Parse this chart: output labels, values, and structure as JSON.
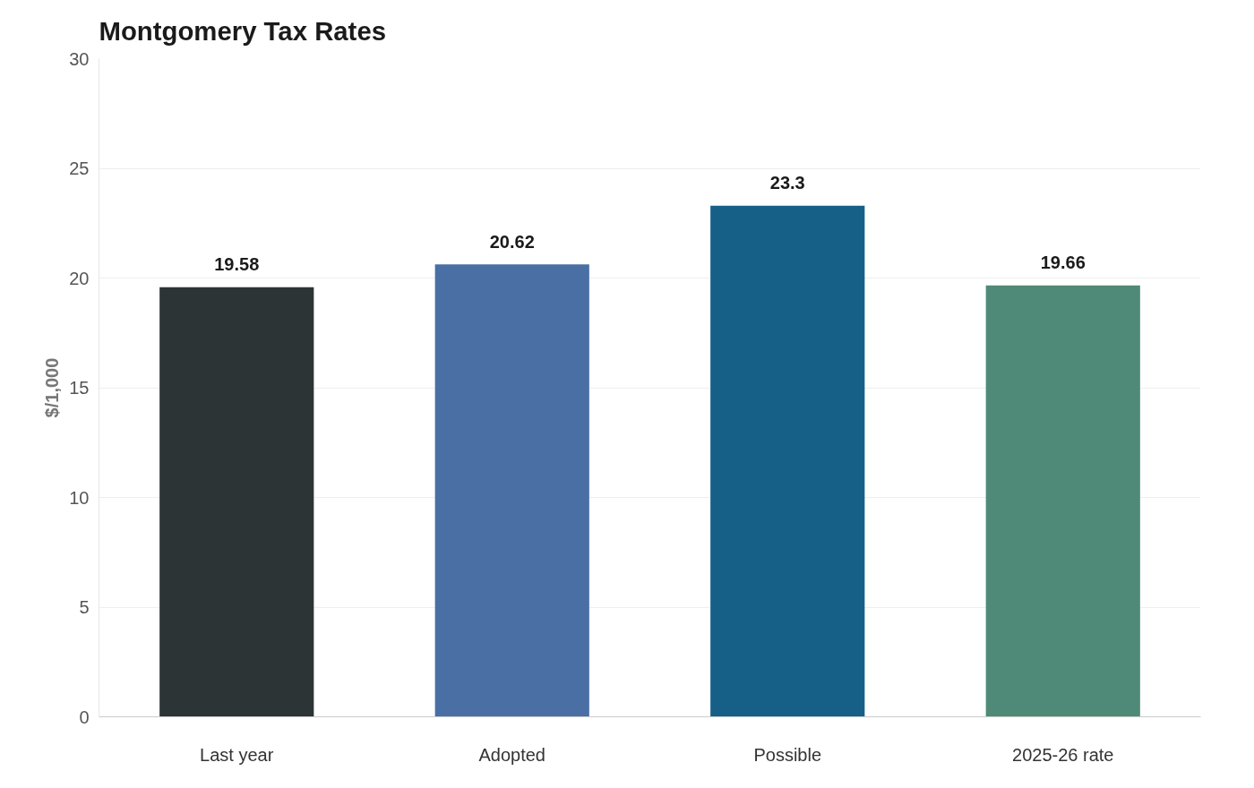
{
  "chart_data": {
    "type": "bar",
    "title": "Montgomery Tax Rates",
    "ylabel": "$/1,000",
    "categories": [
      "Last year",
      "Adopted",
      "Possible",
      "2025-26 rate"
    ],
    "values": [
      19.58,
      20.62,
      23.3,
      19.66
    ],
    "colors": [
      "#2d3436",
      "#4a6fa5",
      "#166088",
      "#4f8a78"
    ],
    "ylim": [
      0,
      30
    ],
    "yticks": [
      0,
      5,
      10,
      15,
      20,
      25,
      30
    ],
    "grid": "y",
    "data_labels": true
  }
}
